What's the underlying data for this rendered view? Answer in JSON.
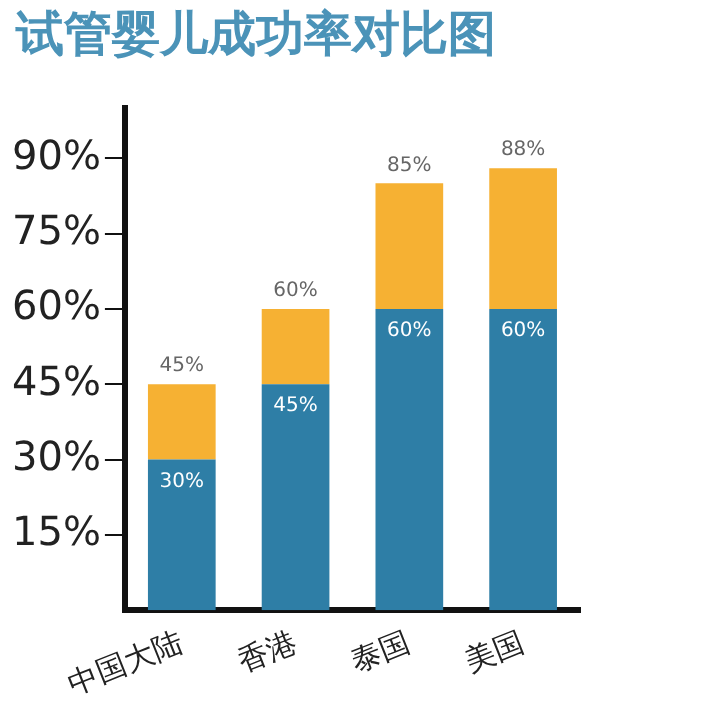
{
  "chart_data": {
    "type": "bar",
    "title": "试管婴儿成功率对比图",
    "categories": [
      "中国大陆",
      "香港",
      "泰国",
      "美国"
    ],
    "stacked": true,
    "series": [
      {
        "color": "#2e7ea6",
        "values": [
          30,
          45,
          60,
          60
        ],
        "value_labels": [
          "30%",
          "45%",
          "60%",
          "60%"
        ]
      },
      {
        "color": "#f6b133",
        "values": [
          15,
          15,
          25,
          28
        ]
      }
    ],
    "totals": [
      "45%",
      "60%",
      "85%",
      "88%"
    ],
    "ylim": [
      0,
      100
    ],
    "yticks": [
      {
        "value": 15,
        "label": "15%"
      },
      {
        "value": 30,
        "label": "30%"
      },
      {
        "value": 45,
        "label": "45%"
      },
      {
        "value": 60,
        "label": "60%"
      },
      {
        "value": 75,
        "label": "75%"
      },
      {
        "value": 90,
        "label": "90%"
      }
    ],
    "grid": false,
    "legend": false
  }
}
